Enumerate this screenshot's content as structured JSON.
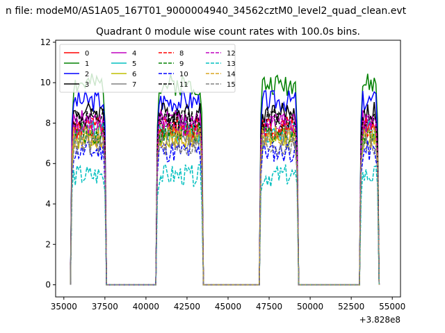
{
  "chart_data": {
    "type": "line",
    "suptitle": "n file: modeM0/AS1A05_167T01_9000004940_34562cztM0_level2_quad_clean.evt",
    "title": "Quadrant 0 module wise count rates with 100.0s bins.",
    "xlabel": "",
    "ylabel": "",
    "x_offset_label": "+3.828e8",
    "xlim": [
      34500,
      55500
    ],
    "ylim": [
      -0.6,
      12.1
    ],
    "x_ticks": [
      35000,
      37500,
      40000,
      42500,
      45000,
      47500,
      50000,
      52500,
      55000
    ],
    "x_tick_labels": [
      "35000",
      "37500",
      "40000",
      "42500",
      "45000",
      "47500",
      "50000",
      "52500",
      "55000"
    ],
    "y_ticks": [
      0,
      2,
      4,
      6,
      8,
      10,
      12
    ],
    "y_tick_labels": [
      "0",
      "2",
      "4",
      "6",
      "8",
      "10",
      "12"
    ],
    "grid": false,
    "legend_position": "top-left",
    "legend_columns": 5,
    "on_intervals": [
      [
        35400,
        37600
      ],
      [
        40600,
        43500
      ],
      [
        46900,
        49300
      ],
      [
        53000,
        54200
      ]
    ],
    "series": [
      {
        "name": "0",
        "color": "#ff0000",
        "style": "solid",
        "level": 7.6
      },
      {
        "name": "1",
        "color": "#008000",
        "style": "solid",
        "level": 9.9
      },
      {
        "name": "2",
        "color": "#0000ff",
        "style": "solid",
        "level": 9.1
      },
      {
        "name": "3",
        "color": "#000000",
        "style": "solid",
        "level": 8.5
      },
      {
        "name": "4",
        "color": "#bf00bf",
        "style": "solid",
        "level": 8.1
      },
      {
        "name": "5",
        "color": "#00bfbf",
        "style": "solid",
        "level": 7.6
      },
      {
        "name": "6",
        "color": "#bfbf00",
        "style": "solid",
        "level": 7.2
      },
      {
        "name": "7",
        "color": "#808080",
        "style": "solid",
        "level": 7.4
      },
      {
        "name": "8",
        "color": "#ff0000",
        "style": "dashed",
        "level": 7.8
      },
      {
        "name": "9",
        "color": "#008000",
        "style": "dashed",
        "level": 7.5
      },
      {
        "name": "10",
        "color": "#0000ff",
        "style": "dashed",
        "level": 6.6
      },
      {
        "name": "11",
        "color": "#000000",
        "style": "dashed",
        "level": 8.2
      },
      {
        "name": "12",
        "color": "#bf00bf",
        "style": "dashed",
        "level": 7.9
      },
      {
        "name": "13",
        "color": "#00bfbf",
        "style": "dashed",
        "level": 5.4
      },
      {
        "name": "14",
        "color": "#daa520",
        "style": "dashed",
        "level": 7.3
      },
      {
        "name": "15",
        "color": "#808080",
        "style": "dashed",
        "level": 6.9
      }
    ]
  }
}
